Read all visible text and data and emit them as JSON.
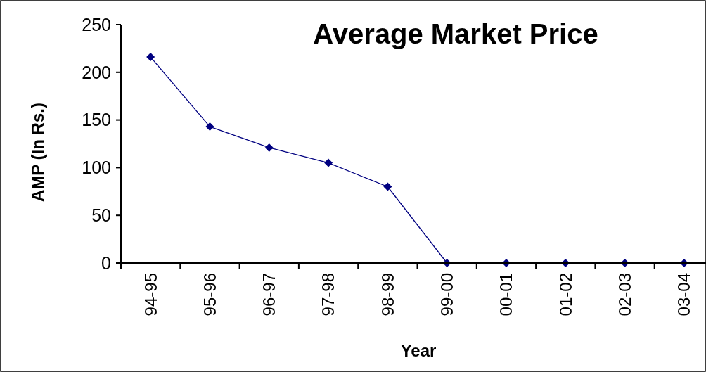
{
  "chart_data": {
    "type": "line",
    "title": "Average Market Price",
    "xlabel": "Year",
    "ylabel": "AMP (In Rs.)",
    "categories": [
      "94-95",
      "95-96",
      "96-97",
      "97-98",
      "98-99",
      "99-00",
      "00-01",
      "01-02",
      "02-03",
      "03-04"
    ],
    "series": [
      {
        "color": "#000080",
        "values": [
          216,
          143,
          121,
          105,
          80,
          0,
          0,
          0,
          0,
          0
        ]
      }
    ],
    "ylim": [
      0,
      250
    ],
    "yticks": [
      0,
      50,
      100,
      150,
      200,
      250
    ],
    "grid": false,
    "marker": "diamond",
    "line_style": "solid"
  }
}
